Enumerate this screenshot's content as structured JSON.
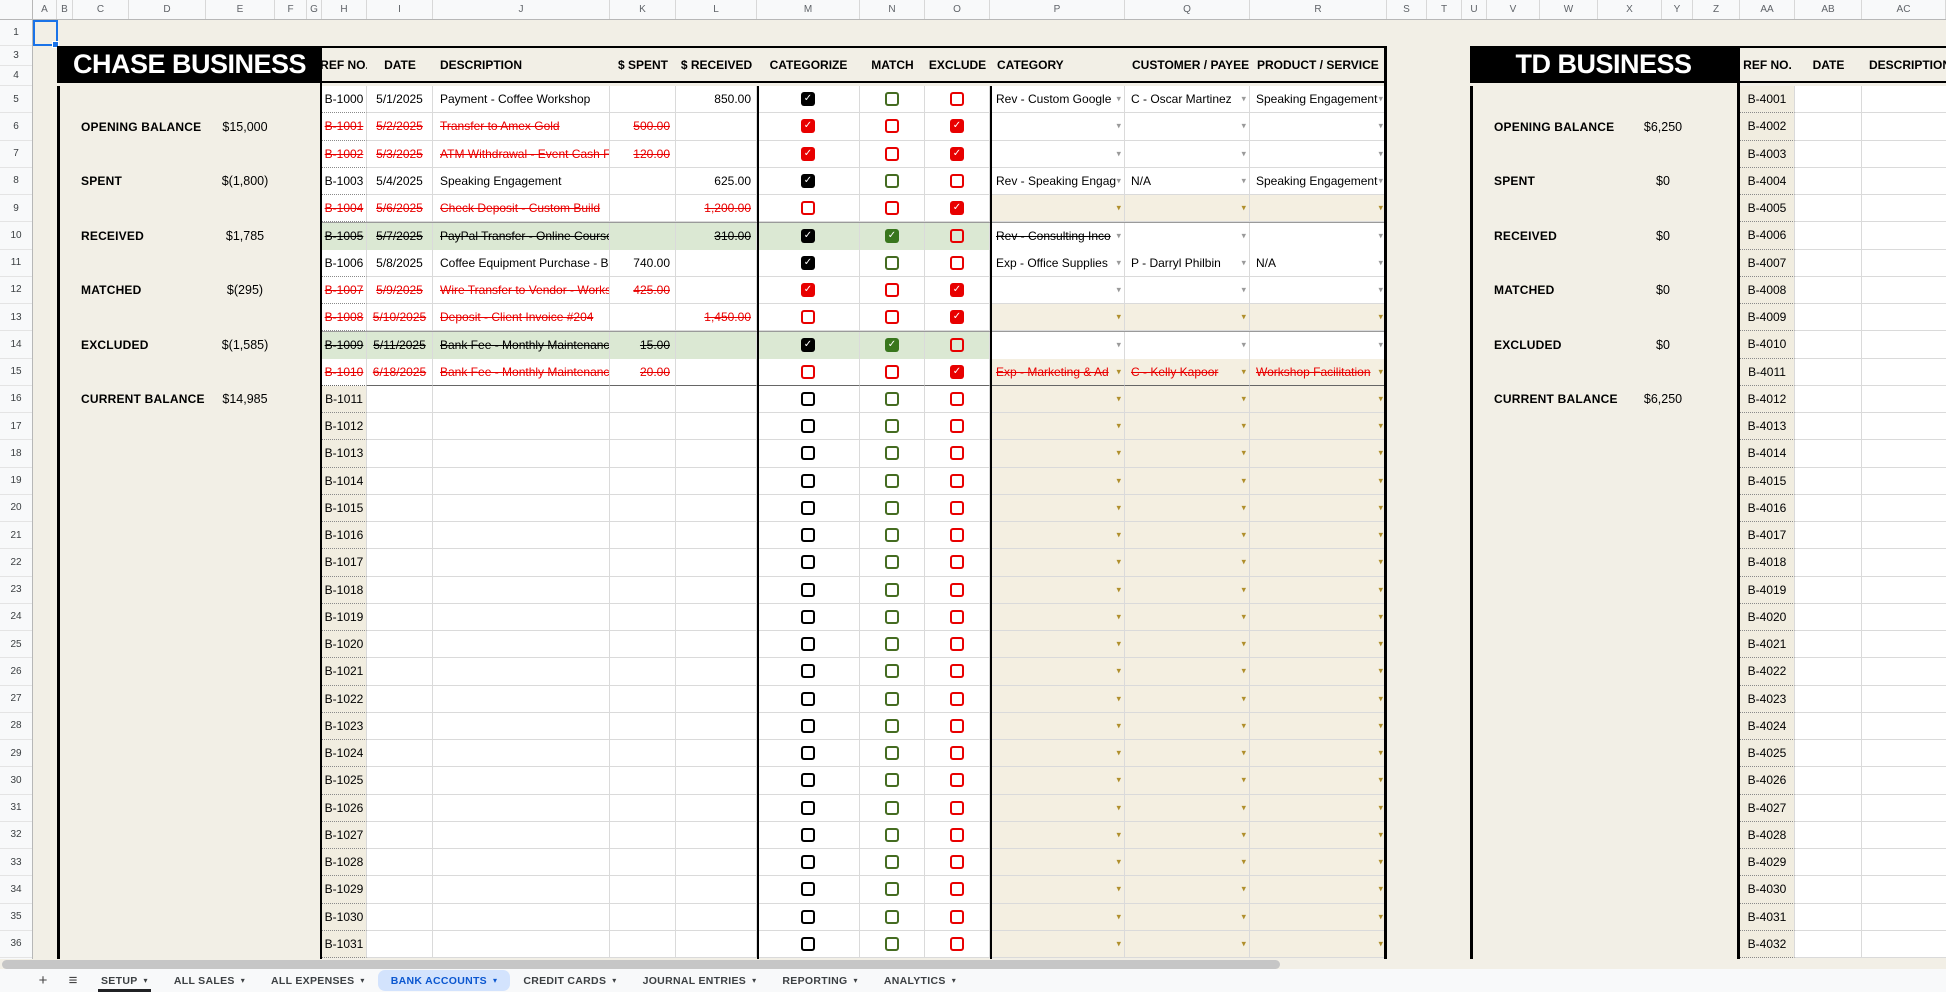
{
  "colors": {
    "accent_blue": "#0b57d0",
    "active_tab_bg": "#d3e3fd",
    "red": "#e80000",
    "green": "#38761d",
    "green_row_bg": "#dbe8d3",
    "sheet_cream": "#f2efe6",
    "beige_cell": "#f4efe1",
    "header_black": "#000000"
  },
  "sheet": {
    "column_letters": [
      "A",
      "B",
      "C",
      "D",
      "E",
      "F",
      "G",
      "H",
      "I",
      "J",
      "K",
      "L",
      "M",
      "N",
      "O",
      "P",
      "Q",
      "R",
      "S",
      "T",
      "U",
      "V",
      "W",
      "X",
      "Y",
      "Z",
      "AA",
      "AB",
      "AC"
    ],
    "row_numbers": [
      "1",
      "3",
      "4",
      "5",
      "6",
      "7",
      "8",
      "9",
      "10",
      "11",
      "12",
      "13",
      "14",
      "15",
      "16",
      "17",
      "18",
      "19",
      "20",
      "21",
      "22",
      "23",
      "24",
      "25",
      "26",
      "27",
      "28",
      "29",
      "30",
      "31",
      "32",
      "33",
      "34",
      "35",
      "36"
    ],
    "selected_cell": "A1"
  },
  "chase": {
    "title": "CHASE BUSINESS",
    "headers": [
      "REF NO.",
      "DATE",
      "DESCRIPTION",
      "$ SPENT",
      "$ RECEIVED",
      "CATEGORIZE",
      "MATCH",
      "EXCLUDE",
      "CATEGORY",
      "CUSTOMER / PAYEE",
      "PRODUCT / SERVICE"
    ],
    "summary": [
      {
        "label": "OPENING BALANCE",
        "value": "$15,000"
      },
      {
        "label": "SPENT",
        "value": "$(1,800)"
      },
      {
        "label": "RECEIVED",
        "value": "$1,785"
      },
      {
        "label": "MATCHED",
        "value": "$(295)"
      },
      {
        "label": "EXCLUDED",
        "value": "$(1,585)"
      },
      {
        "label": "CURRENT BALANCE",
        "value": "$14,985"
      }
    ],
    "rows": [
      {
        "ref": "B-1000",
        "date": "5/1/2025",
        "desc": "Payment - Coffee Workshop",
        "spent": "",
        "received": "850.00",
        "cat": "k1",
        "match": "g0",
        "excl": "r0",
        "category": "Rev - Custom Google",
        "customer": "C - Oscar Martinez",
        "product": "Speaking Engagement",
        "style": "normal",
        "dd": "white"
      },
      {
        "ref": "B-1001",
        "date": "5/2/2025",
        "desc": "Transfer to Amex Gold",
        "spent": "500.00",
        "received": "",
        "cat": "r1",
        "match": "r0",
        "excl": "r1",
        "category": "",
        "customer": "",
        "product": "",
        "style": "red",
        "dd": "white"
      },
      {
        "ref": "B-1002",
        "date": "5/3/2025",
        "desc": "ATM Withdrawal - Event Cash Flo",
        "spent": "120.00",
        "received": "",
        "cat": "r1",
        "match": "r0",
        "excl": "r1",
        "category": "",
        "customer": "",
        "product": "",
        "style": "red",
        "dd": "white"
      },
      {
        "ref": "B-1003",
        "date": "5/4/2025",
        "desc": "Speaking Engagement",
        "spent": "",
        "received": "625.00",
        "cat": "k1",
        "match": "g0",
        "excl": "r0",
        "category": "Rev - Speaking Engag",
        "customer": "N/A",
        "product": "Speaking Engagement",
        "style": "normal",
        "dd": "white"
      },
      {
        "ref": "B-1004",
        "date": "5/6/2025",
        "desc": "Check Deposit - Custom Build",
        "spent": "",
        "received": "1,200.00",
        "cat": "r0",
        "match": "r0",
        "excl": "r1",
        "category": "",
        "customer": "",
        "product": "",
        "style": "red",
        "dd": "beige"
      },
      {
        "ref": "B-1005",
        "date": "5/7/2025",
        "desc": "PayPal Transfer - Online Course",
        "spent": "",
        "received": "310.00",
        "cat": "k1",
        "match": "g1",
        "excl": "r0",
        "category": "Rev - Consulting Inco",
        "customer": "",
        "product": "",
        "style": "green",
        "dd": "white"
      },
      {
        "ref": "B-1006",
        "date": "5/8/2025",
        "desc": "Coffee Equipment Purchase - Bre",
        "spent": "740.00",
        "received": "",
        "cat": "k1",
        "match": "g0",
        "excl": "r0",
        "category": "Exp - Office Supplies",
        "customer": "P - Darryl Philbin",
        "product": "N/A",
        "style": "normal",
        "dd": "white"
      },
      {
        "ref": "B-1007",
        "date": "5/9/2025",
        "desc": "Wire Transfer to Vendor - Worksh",
        "spent": "425.00",
        "received": "",
        "cat": "r1",
        "match": "r0",
        "excl": "r1",
        "category": "",
        "customer": "",
        "product": "",
        "style": "red",
        "dd": "white"
      },
      {
        "ref": "B-1008",
        "date": "5/10/2025",
        "desc": "Deposit - Client Invoice #204",
        "spent": "",
        "received": "1,450.00",
        "cat": "r0",
        "match": "r0",
        "excl": "r1",
        "category": "",
        "customer": "",
        "product": "",
        "style": "red",
        "dd": "beige"
      },
      {
        "ref": "B-1009",
        "date": "5/11/2025",
        "desc": "Bank Fee - Monthly Maintenance",
        "spent": "15.00",
        "received": "",
        "cat": "k1",
        "match": "g1",
        "excl": "r0",
        "category": "",
        "customer": "",
        "product": "",
        "style": "green",
        "dd": "white"
      },
      {
        "ref": "B-1010",
        "date": "6/18/2025",
        "desc": "Bank Fee - Monthly Maintenance",
        "spent": "20.00",
        "received": "",
        "cat": "r0",
        "match": "r0",
        "excl": "r1",
        "category": "Exp - Marketing & Ad",
        "customer": "C - Kelly Kapoor",
        "product": "Workshop Facilitation",
        "style": "red",
        "dd": "beige",
        "divider": true
      }
    ],
    "empty_refs": [
      "B-1011",
      "B-1012",
      "B-1013",
      "B-1014",
      "B-1015",
      "B-1016",
      "B-1017",
      "B-1018",
      "B-1019",
      "B-1020",
      "B-1021",
      "B-1022",
      "B-1023",
      "B-1024",
      "B-1025",
      "B-1026",
      "B-1027",
      "B-1028",
      "B-1029",
      "B-1030",
      "B-1031"
    ]
  },
  "td": {
    "title": "TD BUSINESS",
    "headers": [
      "REF NO.",
      "DATE",
      "DESCRIPTION"
    ],
    "summary": [
      {
        "label": "OPENING BALANCE",
        "value": "$6,250"
      },
      {
        "label": "SPENT",
        "value": "$0"
      },
      {
        "label": "RECEIVED",
        "value": "$0"
      },
      {
        "label": "MATCHED",
        "value": "$0"
      },
      {
        "label": "EXCLUDED",
        "value": "$0"
      },
      {
        "label": "CURRENT BALANCE",
        "value": "$6,250"
      }
    ],
    "refs": [
      "B-4001",
      "B-4002",
      "B-4003",
      "B-4004",
      "B-4005",
      "B-4006",
      "B-4007",
      "B-4008",
      "B-4009",
      "B-4010",
      "B-4011",
      "B-4012",
      "B-4013",
      "B-4014",
      "B-4015",
      "B-4016",
      "B-4017",
      "B-4018",
      "B-4019",
      "B-4020",
      "B-4021",
      "B-4022",
      "B-4023",
      "B-4024",
      "B-4025",
      "B-4026",
      "B-4027",
      "B-4028",
      "B-4029",
      "B-4030",
      "B-4031",
      "B-4032"
    ]
  },
  "tabbar": {
    "plus_icon": "+",
    "menu_icon": "≡",
    "dropdown_arrow": "▾",
    "tabs": [
      {
        "label": "SETUP",
        "underline": true
      },
      {
        "label": "ALL SALES"
      },
      {
        "label": "ALL EXPENSES"
      },
      {
        "label": "BANK ACCOUNTS",
        "active": true
      },
      {
        "label": "CREDIT CARDS"
      },
      {
        "label": "JOURNAL ENTRIES"
      },
      {
        "label": "REPORTING"
      },
      {
        "label": "ANALYTICS"
      }
    ]
  }
}
